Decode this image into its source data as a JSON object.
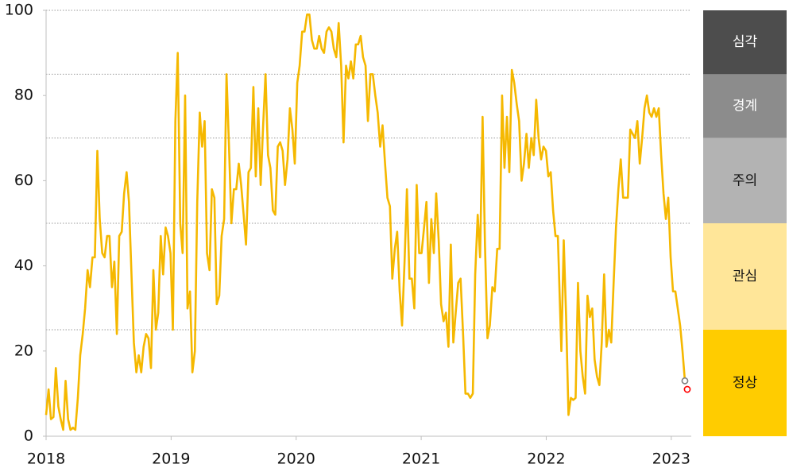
{
  "chart_data": {
    "type": "line",
    "color": "#f5b800",
    "xlim": [
      2018,
      2023.16
    ],
    "xticks": [
      2018,
      2019,
      2020,
      2021,
      2022,
      2023
    ],
    "ylim": [
      0,
      100
    ],
    "yticks": [
      0,
      20,
      40,
      60,
      80,
      100
    ],
    "x": [
      2018.0,
      2018.02,
      2018.039,
      2018.059,
      2018.078,
      2018.098,
      2018.117,
      2018.137,
      2018.156,
      2018.176,
      2018.195,
      2018.215,
      2018.234,
      2018.254,
      2018.273,
      2018.293,
      2018.312,
      2018.332,
      2018.351,
      2018.371,
      2018.39,
      2018.41,
      2018.429,
      2018.449,
      2018.468,
      2018.488,
      2018.507,
      2018.527,
      2018.546,
      2018.566,
      2018.585,
      2018.605,
      2018.624,
      2018.644,
      2018.663,
      2018.683,
      2018.702,
      2018.722,
      2018.741,
      2018.761,
      2018.78,
      2018.8,
      2018.819,
      2018.839,
      2018.858,
      2018.878,
      2018.897,
      2018.917,
      2018.936,
      2018.956,
      2018.975,
      2018.995,
      2019.014,
      2019.034,
      2019.053,
      2019.073,
      2019.092,
      2019.112,
      2019.131,
      2019.151,
      2019.17,
      2019.19,
      2019.209,
      2019.229,
      2019.248,
      2019.268,
      2019.287,
      2019.307,
      2019.326,
      2019.346,
      2019.365,
      2019.385,
      2019.404,
      2019.424,
      2019.443,
      2019.463,
      2019.482,
      2019.502,
      2019.521,
      2019.541,
      2019.56,
      2019.58,
      2019.599,
      2019.619,
      2019.638,
      2019.658,
      2019.677,
      2019.697,
      2019.716,
      2019.736,
      2019.755,
      2019.775,
      2019.794,
      2019.814,
      2019.833,
      2019.853,
      2019.872,
      2019.892,
      2019.911,
      2019.931,
      2019.95,
      2019.97,
      2019.989,
      2020.009,
      2020.028,
      2020.048,
      2020.067,
      2020.087,
      2020.106,
      2020.126,
      2020.145,
      2020.165,
      2020.184,
      2020.204,
      2020.223,
      2020.243,
      2020.262,
      2020.282,
      2020.301,
      2020.321,
      2020.34,
      2020.36,
      2020.379,
      2020.399,
      2020.418,
      2020.438,
      2020.457,
      2020.477,
      2020.496,
      2020.516,
      2020.535,
      2020.555,
      2020.574,
      2020.594,
      2020.613,
      2020.633,
      2020.652,
      2020.672,
      2020.691,
      2020.711,
      2020.73,
      2020.75,
      2020.769,
      2020.789,
      2020.808,
      2020.828,
      2020.847,
      2020.867,
      2020.886,
      2020.906,
      2020.925,
      2020.945,
      2020.964,
      2020.984,
      2021.003,
      2021.023,
      2021.042,
      2021.062,
      2021.081,
      2021.101,
      2021.12,
      2021.14,
      2021.159,
      2021.179,
      2021.198,
      2021.218,
      2021.237,
      2021.257,
      2021.276,
      2021.296,
      2021.315,
      2021.335,
      2021.354,
      2021.374,
      2021.393,
      2021.413,
      2021.432,
      2021.452,
      2021.471,
      2021.491,
      2021.51,
      2021.53,
      2021.549,
      2021.569,
      2021.588,
      2021.608,
      2021.627,
      2021.647,
      2021.666,
      2021.686,
      2021.705,
      2021.725,
      2021.744,
      2021.764,
      2021.783,
      2021.803,
      2021.822,
      2021.842,
      2021.861,
      2021.881,
      2021.9,
      2021.92,
      2021.939,
      2021.959,
      2021.978,
      2021.998,
      2022.017,
      2022.036,
      2022.055,
      2022.074,
      2022.093,
      2022.121,
      2022.14,
      2022.159,
      2022.178,
      2022.197,
      2022.216,
      2022.235,
      2022.254,
      2022.273,
      2022.292,
      2022.311,
      2022.33,
      2022.349,
      2022.368,
      2022.387,
      2022.406,
      2022.425,
      2022.444,
      2022.463,
      2022.482,
      2022.501,
      2022.52,
      2022.539,
      2022.558,
      2022.577,
      2022.596,
      2022.615,
      2022.634,
      2022.653,
      2022.672,
      2022.691,
      2022.71,
      2022.729,
      2022.748,
      2022.767,
      2022.786,
      2022.805,
      2022.824,
      2022.843,
      2022.862,
      2022.881,
      2022.9,
      2022.919,
      2022.938,
      2022.957,
      2022.976,
      2022.995,
      2023.014,
      2023.033,
      2023.052,
      2023.071,
      2023.09,
      2023.109
    ],
    "values": [
      5,
      11,
      4,
      4.5,
      16,
      7,
      4,
      1.5,
      13,
      4,
      1.5,
      2,
      1.5,
      9,
      19,
      24,
      30,
      39,
      35,
      42,
      42,
      67,
      51,
      43,
      42,
      47,
      47,
      35,
      41,
      24,
      47,
      48,
      57,
      62,
      55,
      38,
      22,
      15,
      19,
      15,
      21,
      24,
      23,
      16,
      39,
      25,
      29,
      47,
      38,
      49,
      47,
      43,
      25,
      74,
      90,
      50,
      43,
      80,
      30,
      34,
      15,
      20,
      55,
      76,
      68,
      74,
      43,
      39,
      58,
      56,
      31,
      33,
      47,
      51,
      85,
      68,
      50,
      58,
      58,
      64,
      59,
      52,
      45,
      62,
      63,
      82,
      61,
      77,
      59,
      73,
      85,
      66,
      63,
      53,
      52,
      68,
      69,
      67,
      59,
      65,
      77,
      72,
      64,
      83,
      87,
      95,
      95,
      99,
      99,
      93,
      91,
      91,
      94,
      91,
      90,
      95,
      96,
      95,
      91,
      89,
      97,
      87,
      69,
      87,
      84,
      88,
      84,
      92,
      92,
      94,
      89,
      87,
      74,
      85,
      85,
      80,
      76,
      68,
      73,
      64,
      56,
      54,
      37,
      44,
      48,
      34,
      26,
      41,
      58,
      37,
      37,
      30,
      59,
      43,
      43,
      49,
      55,
      36,
      51,
      43,
      57,
      46,
      31,
      27,
      29,
      21,
      45,
      22,
      29,
      36,
      37,
      24,
      10,
      10,
      9,
      10,
      38,
      52,
      42,
      75,
      45,
      23,
      26,
      35,
      34,
      44,
      44,
      80,
      63,
      75,
      62,
      86,
      83,
      78,
      74,
      60,
      64,
      71,
      63,
      70,
      66,
      79,
      70,
      65,
      68,
      67,
      61,
      62,
      53,
      47,
      47,
      20,
      46,
      28,
      5,
      9,
      8.5,
      9,
      36,
      20,
      14,
      10,
      33,
      28,
      30,
      18,
      14,
      12,
      22,
      38,
      21,
      25,
      22,
      36,
      49,
      58,
      65,
      56,
      56,
      56,
      72,
      71,
      70,
      74,
      64,
      70,
      77,
      80,
      76,
      75,
      77,
      75,
      77,
      66,
      57,
      51,
      56,
      42,
      34,
      34,
      30,
      26,
      20,
      13
    ],
    "markers": [
      {
        "x": 2023.109,
        "value": 13,
        "color": "#7f7f7f"
      },
      {
        "x": 2023.128,
        "value": 11,
        "color": "#ff0000"
      }
    ],
    "bands": [
      {
        "label": "심각",
        "from": 85,
        "to": 100,
        "color": "#4d4d4d",
        "text_color": "#ffffff"
      },
      {
        "label": "경계",
        "from": 70,
        "to": 85,
        "color": "#8c8c8c",
        "text_color": "#ffffff"
      },
      {
        "label": "주의",
        "from": 50,
        "to": 70,
        "color": "#b3b3b3",
        "text_color": "#111111"
      },
      {
        "label": "관심",
        "from": 25,
        "to": 50,
        "color": "#ffe699",
        "text_color": "#111111"
      },
      {
        "label": "정상",
        "from": 0,
        "to": 25,
        "color": "#ffcc00",
        "text_color": "#111111"
      }
    ]
  }
}
